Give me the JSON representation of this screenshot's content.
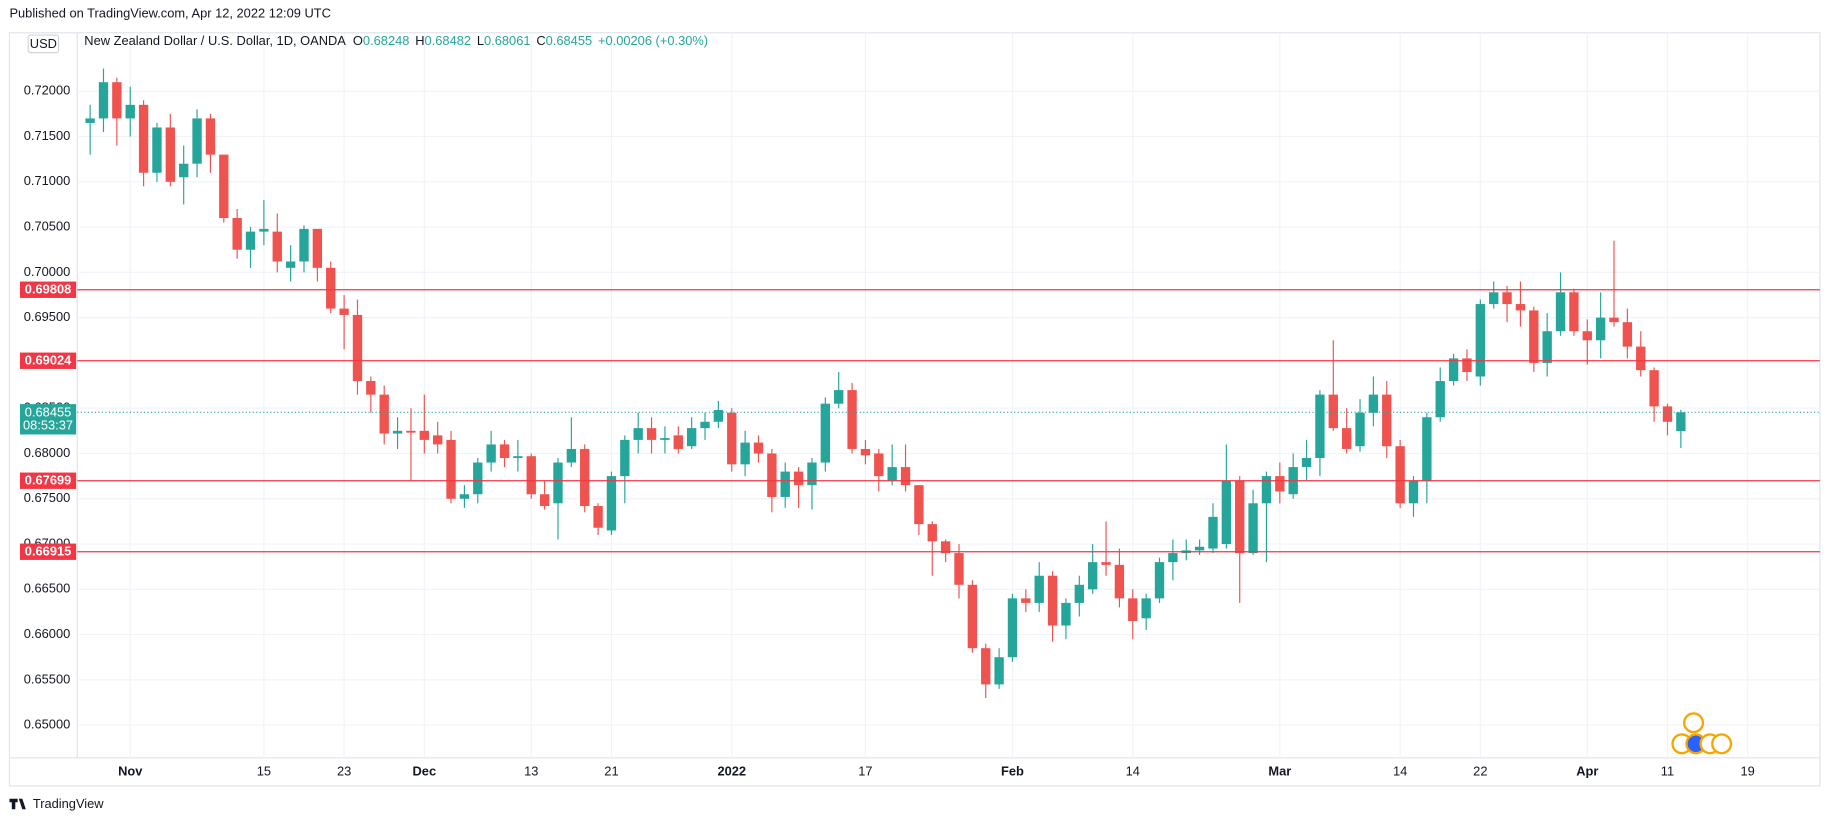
{
  "header": {
    "published": "Published on TradingView.com, Apr 12, 2022 12:09 UTC",
    "brand": "TradingView"
  },
  "chart_data": {
    "type": "candlestick",
    "title": "New Zealand Dollar / U.S. Dollar, 1D, OANDA",
    "currency": "USD",
    "ohlc_labels": [
      "O",
      "H",
      "L",
      "C"
    ],
    "change": "+0.00206 (+0.30%)",
    "countdown": "08:53:37",
    "up_color": "#26a69a",
    "down_color": "#ef5350",
    "level_color": "#f23645",
    "grid": true,
    "open": [
      0.7165,
      0.717,
      0.721,
      0.717,
      0.7185,
      0.711,
      0.716,
      0.7105,
      0.712,
      0.717,
      0.713,
      0.706,
      0.7025,
      0.7045,
      0.7045,
      0.7005,
      0.7012,
      0.7048,
      0.7005,
      0.696,
      0.6953,
      0.688,
      0.6865,
      0.6822,
      0.6825,
      0.6825,
      0.682,
      0.6815,
      0.675,
      0.6755,
      0.679,
      0.681,
      0.6795,
      0.6797,
      0.6755,
      0.6745,
      0.679,
      0.6805,
      0.6742,
      0.6715,
      0.6775,
      0.6815,
      0.6828,
      0.6815,
      0.682,
      0.6808,
      0.6828,
      0.6835,
      0.6845,
      0.6788,
      0.6812,
      0.68,
      0.6752,
      0.678,
      0.6765,
      0.679,
      0.6855,
      0.687,
      0.6805,
      0.68,
      0.677,
      0.6785,
      0.6765,
      0.6722,
      0.6703,
      0.669,
      0.6655,
      0.6585,
      0.6545,
      0.6575,
      0.664,
      0.6635,
      0.6665,
      0.661,
      0.6635,
      0.665,
      0.668,
      0.6677,
      0.664,
      0.6618,
      0.664,
      0.668,
      0.669,
      0.6693,
      0.6695,
      0.67,
      0.677,
      0.669,
      0.6745,
      0.6775,
      0.6755,
      0.6785,
      0.6795,
      0.6865,
      0.6828,
      0.6808,
      0.6845,
      0.6865,
      0.6808,
      0.6745,
      0.677,
      0.684,
      0.688,
      0.6905,
      0.6885,
      0.6965,
      0.6978,
      0.6965,
      0.6958,
      0.69,
      0.6935,
      0.6978,
      0.6935,
      0.6925,
      0.695,
      0.6945,
      0.6918,
      0.6892,
      0.6852,
      0.68248
    ],
    "high": [
      0.7185,
      0.7225,
      0.7215,
      0.7205,
      0.719,
      0.7165,
      0.7175,
      0.714,
      0.718,
      0.7175,
      0.713,
      0.707,
      0.705,
      0.708,
      0.7065,
      0.703,
      0.7052,
      0.7048,
      0.7012,
      0.6975,
      0.697,
      0.6885,
      0.6875,
      0.684,
      0.685,
      0.6865,
      0.6835,
      0.6825,
      0.6765,
      0.6795,
      0.6825,
      0.6815,
      0.6815,
      0.68,
      0.677,
      0.6795,
      0.684,
      0.681,
      0.6745,
      0.678,
      0.682,
      0.6845,
      0.684,
      0.683,
      0.683,
      0.684,
      0.6845,
      0.6858,
      0.685,
      0.6825,
      0.682,
      0.6805,
      0.679,
      0.6785,
      0.6795,
      0.6862,
      0.689,
      0.6878,
      0.6815,
      0.6805,
      0.681,
      0.681,
      0.6765,
      0.6725,
      0.6705,
      0.67,
      0.666,
      0.659,
      0.6585,
      0.6645,
      0.665,
      0.668,
      0.667,
      0.664,
      0.6665,
      0.67,
      0.6725,
      0.6695,
      0.665,
      0.6645,
      0.6685,
      0.6705,
      0.6705,
      0.6705,
      0.6745,
      0.681,
      0.6775,
      0.676,
      0.678,
      0.679,
      0.68,
      0.6815,
      0.687,
      0.6925,
      0.685,
      0.686,
      0.6885,
      0.688,
      0.6815,
      0.6775,
      0.6845,
      0.6895,
      0.691,
      0.6915,
      0.697,
      0.699,
      0.6985,
      0.699,
      0.6962,
      0.6955,
      0.7,
      0.6982,
      0.6948,
      0.6978,
      0.7035,
      0.696,
      0.6935,
      0.6895,
      0.6855,
      0.68482
    ],
    "low": [
      0.713,
      0.7155,
      0.714,
      0.715,
      0.7095,
      0.71,
      0.7095,
      0.7075,
      0.7105,
      0.711,
      0.7055,
      0.7015,
      0.7005,
      0.703,
      0.7,
      0.699,
      0.7,
      0.699,
      0.6955,
      0.6915,
      0.6865,
      0.6845,
      0.681,
      0.6805,
      0.677,
      0.68,
      0.68,
      0.6745,
      0.674,
      0.6745,
      0.678,
      0.6785,
      0.678,
      0.675,
      0.6738,
      0.6705,
      0.6785,
      0.6735,
      0.671,
      0.671,
      0.6745,
      0.68,
      0.68,
      0.68,
      0.68,
      0.6805,
      0.6815,
      0.6828,
      0.678,
      0.6775,
      0.679,
      0.6735,
      0.674,
      0.674,
      0.6738,
      0.678,
      0.685,
      0.68,
      0.6788,
      0.6758,
      0.6765,
      0.6758,
      0.671,
      0.6665,
      0.668,
      0.664,
      0.658,
      0.653,
      0.654,
      0.657,
      0.6625,
      0.6625,
      0.6592,
      0.6595,
      0.662,
      0.6645,
      0.6665,
      0.663,
      0.6595,
      0.6605,
      0.6635,
      0.666,
      0.6682,
      0.6688,
      0.669,
      0.6695,
      0.6635,
      0.6688,
      0.668,
      0.6745,
      0.675,
      0.677,
      0.6775,
      0.6825,
      0.68,
      0.6802,
      0.683,
      0.6795,
      0.674,
      0.673,
      0.6745,
      0.6835,
      0.6875,
      0.688,
      0.6875,
      0.696,
      0.6945,
      0.694,
      0.689,
      0.6885,
      0.693,
      0.693,
      0.6898,
      0.6905,
      0.694,
      0.6905,
      0.6885,
      0.6835,
      0.682,
      0.68061
    ],
    "close": [
      0.717,
      0.721,
      0.717,
      0.7185,
      0.711,
      0.716,
      0.71,
      0.712,
      0.717,
      0.713,
      0.706,
      0.7025,
      0.7045,
      0.7048,
      0.7012,
      0.7012,
      0.7048,
      0.7005,
      0.696,
      0.6953,
      0.688,
      0.6865,
      0.6822,
      0.6825,
      0.6823,
      0.6815,
      0.681,
      0.675,
      0.6755,
      0.679,
      0.681,
      0.6795,
      0.6797,
      0.6755,
      0.6742,
      0.679,
      0.6805,
      0.6742,
      0.6718,
      0.6775,
      0.6815,
      0.6828,
      0.6815,
      0.6817,
      0.6805,
      0.6828,
      0.6835,
      0.6848,
      0.6788,
      0.6812,
      0.68,
      0.6752,
      0.678,
      0.6765,
      0.679,
      0.6855,
      0.687,
      0.6805,
      0.6798,
      0.6775,
      0.6785,
      0.6765,
      0.6722,
      0.6703,
      0.669,
      0.6655,
      0.6585,
      0.6545,
      0.6575,
      0.664,
      0.6635,
      0.6665,
      0.661,
      0.6635,
      0.6655,
      0.668,
      0.6677,
      0.664,
      0.6615,
      0.664,
      0.668,
      0.669,
      0.6693,
      0.6697,
      0.673,
      0.677,
      0.669,
      0.6745,
      0.6775,
      0.6758,
      0.6785,
      0.6795,
      0.6865,
      0.6828,
      0.6805,
      0.6845,
      0.6865,
      0.6808,
      0.6745,
      0.677,
      0.684,
      0.688,
      0.6905,
      0.689,
      0.6965,
      0.6978,
      0.6965,
      0.6958,
      0.69,
      0.6935,
      0.6978,
      0.6935,
      0.6925,
      0.695,
      0.6945,
      0.6918,
      0.6892,
      0.6852,
      0.6835,
      0.68455
    ],
    "levels": [
      0.69808,
      0.69024,
      0.67699,
      0.66915
    ],
    "xlim": [
      -0.96,
      129.4
    ],
    "xticks": [
      {
        "value": 3,
        "label": "Nov"
      },
      {
        "value": 13,
        "label": "15"
      },
      {
        "value": 19,
        "label": "23"
      },
      {
        "value": 25,
        "label": "Dec"
      },
      {
        "value": 33,
        "label": "13"
      },
      {
        "value": 39,
        "label": "21"
      },
      {
        "value": 48,
        "label": "2022"
      },
      {
        "value": 58,
        "label": "17"
      },
      {
        "value": 69,
        "label": "Feb"
      },
      {
        "value": 78,
        "label": "14"
      },
      {
        "value": 89,
        "label": "Mar"
      },
      {
        "value": 98,
        "label": "14"
      },
      {
        "value": 104,
        "label": "22"
      },
      {
        "value": 112,
        "label": "Apr"
      },
      {
        "value": 118,
        "label": "11"
      },
      {
        "value": 124,
        "label": "19"
      }
    ],
    "ylim": [
      0.64639,
      0.72646
    ],
    "yticks": [
      {
        "value": 0.65,
        "label": "0.65000"
      },
      {
        "value": 0.655,
        "label": "0.65500"
      },
      {
        "value": 0.66,
        "label": "0.66000"
      },
      {
        "value": 0.665,
        "label": "0.66500"
      },
      {
        "value": 0.67,
        "label": "0.67000"
      },
      {
        "value": 0.675,
        "label": "0.67500"
      },
      {
        "value": 0.68,
        "label": "0.68000"
      },
      {
        "value": 0.685,
        "label": "0.68500"
      },
      {
        "value": 0.69,
        "label": "0.69000"
      },
      {
        "value": 0.695,
        "label": "0.69500"
      },
      {
        "value": 0.7,
        "label": "0.70000"
      },
      {
        "value": 0.705,
        "label": "0.70500"
      },
      {
        "value": 0.71,
        "label": "0.71000"
      },
      {
        "value": 0.715,
        "label": "0.71500"
      },
      {
        "value": 0.72,
        "label": "0.72000"
      }
    ]
  }
}
